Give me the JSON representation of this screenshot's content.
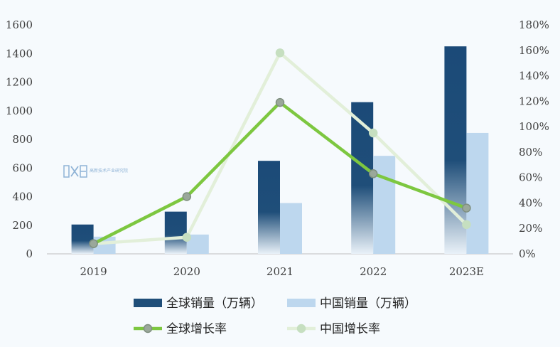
{
  "chart_data": {
    "type": "bar",
    "title": "",
    "xlabel": "",
    "ylabel": "",
    "categories": [
      "2019",
      "2020",
      "2021",
      "2022",
      "2023E"
    ],
    "ylim": [
      0,
      1600
    ],
    "yticks": [
      "0",
      "200",
      "400",
      "600",
      "800",
      "1000",
      "1200",
      "1400",
      "1600"
    ],
    "y2lim": [
      0,
      180
    ],
    "y2ticks": [
      "0%",
      "20%",
      "40%",
      "60%",
      "80%",
      "100%",
      "120%",
      "140%",
      "160%",
      "180%"
    ],
    "grid": false,
    "legend_position": "bottom",
    "series": [
      {
        "name": "全球销量（万辆）",
        "kind": "bar",
        "axis": "left",
        "color": "#1f4e79",
        "values": [
          205,
          295,
          650,
          1060,
          1450
        ]
      },
      {
        "name": "中国销量（万辆）",
        "kind": "bar",
        "axis": "left",
        "color": "#bdd7ee",
        "values": [
          120,
          135,
          355,
          685,
          845
        ]
      },
      {
        "name": "全球增长率",
        "kind": "line",
        "axis": "right",
        "color": "#7dc740",
        "values": [
          8,
          45,
          119,
          63,
          36
        ]
      },
      {
        "name": "中国增长率",
        "kind": "line",
        "axis": "right",
        "color": "#e2efd9",
        "values": [
          8,
          13,
          158,
          95,
          23
        ]
      }
    ]
  },
  "watermark": {
    "logo": "DXE",
    "text": "高新技术产业研究院",
    "color": "#8fb3d6"
  }
}
